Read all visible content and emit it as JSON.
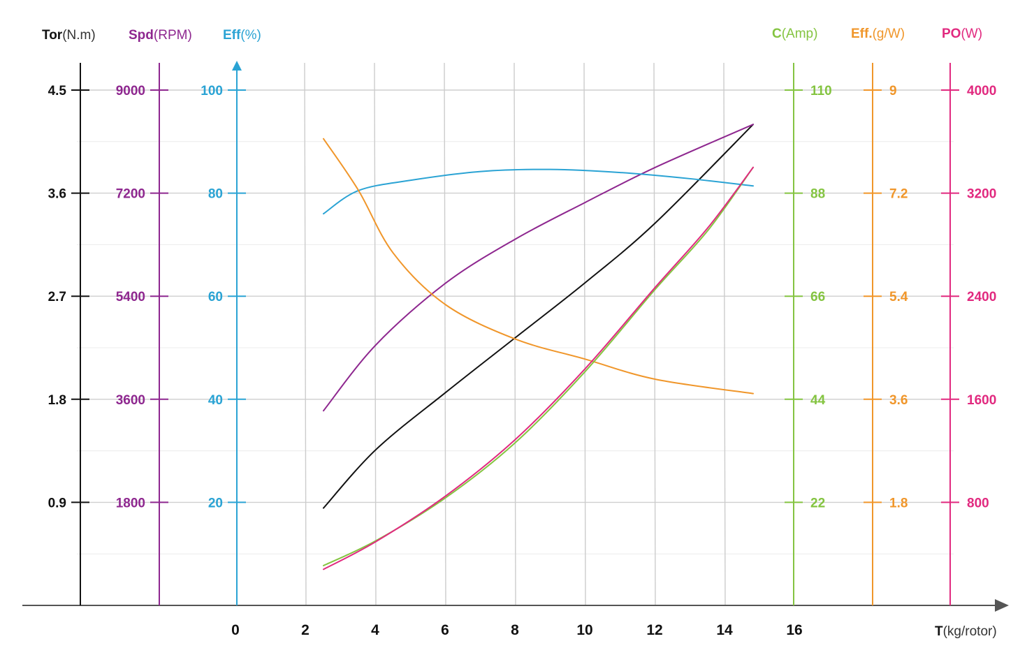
{
  "chart_data": {
    "type": "line",
    "x_axis": {
      "title_bold": "T",
      "title_unit": "(kg/rotor)",
      "ticks": [
        0,
        2,
        4,
        6,
        8,
        10,
        12,
        14,
        16
      ],
      "range": [
        0,
        16
      ]
    },
    "y_axes": [
      {
        "id": "tor",
        "title_bold": "Tor",
        "title_unit": "(N.m)",
        "color": "#111111",
        "ticks": [
          "0.9",
          "1.8",
          "2.7",
          "3.6",
          "4.5"
        ],
        "range": [
          0,
          4.5
        ],
        "side": "left"
      },
      {
        "id": "spd",
        "title_bold": "Spd",
        "title_unit": "(RPM)",
        "color": "#8e278f",
        "ticks": [
          "1800",
          "3600",
          "5400",
          "7200",
          "9000"
        ],
        "range": [
          0,
          9000
        ],
        "side": "left"
      },
      {
        "id": "eff",
        "title_bold": "Eff",
        "title_unit": "(%)",
        "color": "#2aa3d4",
        "ticks": [
          "20",
          "40",
          "60",
          "80",
          "100"
        ],
        "range": [
          0,
          100
        ],
        "side": "left"
      },
      {
        "id": "amp",
        "title_bold": "C",
        "title_unit": "(Amp)",
        "color": "#84c441",
        "ticks": [
          "22",
          "44",
          "66",
          "88",
          "110"
        ],
        "range": [
          0,
          110
        ],
        "side": "right"
      },
      {
        "id": "gw",
        "title_bold": "Eff.",
        "title_unit": "(g/W)",
        "color": "#f0962a",
        "ticks": [
          "1.8",
          "3.6",
          "5.4",
          "7.2",
          "9"
        ],
        "range": [
          0,
          9
        ],
        "side": "right"
      },
      {
        "id": "pw",
        "title_bold": "PO",
        "title_unit": "(W)",
        "color": "#e1297f",
        "ticks": [
          "800",
          "1600",
          "2400",
          "3200",
          "4000"
        ],
        "range": [
          0,
          4000
        ],
        "side": "right"
      }
    ],
    "series": [
      {
        "axis": "tor",
        "color": "#111111",
        "x": [
          2.5,
          4.0,
          6.0,
          8.0,
          10.0,
          12.0,
          14.8
        ],
        "y": [
          0.85,
          1.36,
          1.86,
          2.34,
          2.82,
          3.34,
          4.2
        ]
      },
      {
        "axis": "spd",
        "color": "#8e278f",
        "x": [
          2.5,
          4.0,
          6.0,
          8.0,
          10.0,
          12.0,
          14.8
        ],
        "y": [
          3400,
          4550,
          5630,
          6400,
          7040,
          7650,
          8400
        ]
      },
      {
        "axis": "eff",
        "color": "#2aa3d4",
        "x": [
          2.5,
          3.5,
          5.0,
          7.0,
          9.0,
          11.0,
          13.0,
          14.8
        ],
        "y": [
          76,
          80.5,
          82.5,
          84.2,
          84.6,
          84.0,
          82.8,
          81.4
        ]
      },
      {
        "axis": "gw",
        "color": "#f0962a",
        "x": [
          2.5,
          3.5,
          4.5,
          6.0,
          8.0,
          10.0,
          12.0,
          14.8
        ],
        "y": [
          8.15,
          7.25,
          6.15,
          5.25,
          4.65,
          4.3,
          3.95,
          3.7
        ]
      },
      {
        "axis": "amp",
        "color": "#84c441",
        "x": [
          2.5,
          4.0,
          6.0,
          8.0,
          10.0,
          12.0,
          13.5,
          14.8
        ],
        "y": [
          8.5,
          13.8,
          23.0,
          34.8,
          50.0,
          67.5,
          80.0,
          93.5
        ]
      },
      {
        "axis": "pw",
        "color": "#e1297f",
        "x": [
          2.5,
          4.0,
          6.0,
          8.0,
          10.0,
          12.0,
          13.5,
          14.8
        ],
        "y": [
          280,
          495,
          850,
          1290,
          1840,
          2470,
          2930,
          3400
        ]
      }
    ],
    "grid": true,
    "legend": "none"
  }
}
